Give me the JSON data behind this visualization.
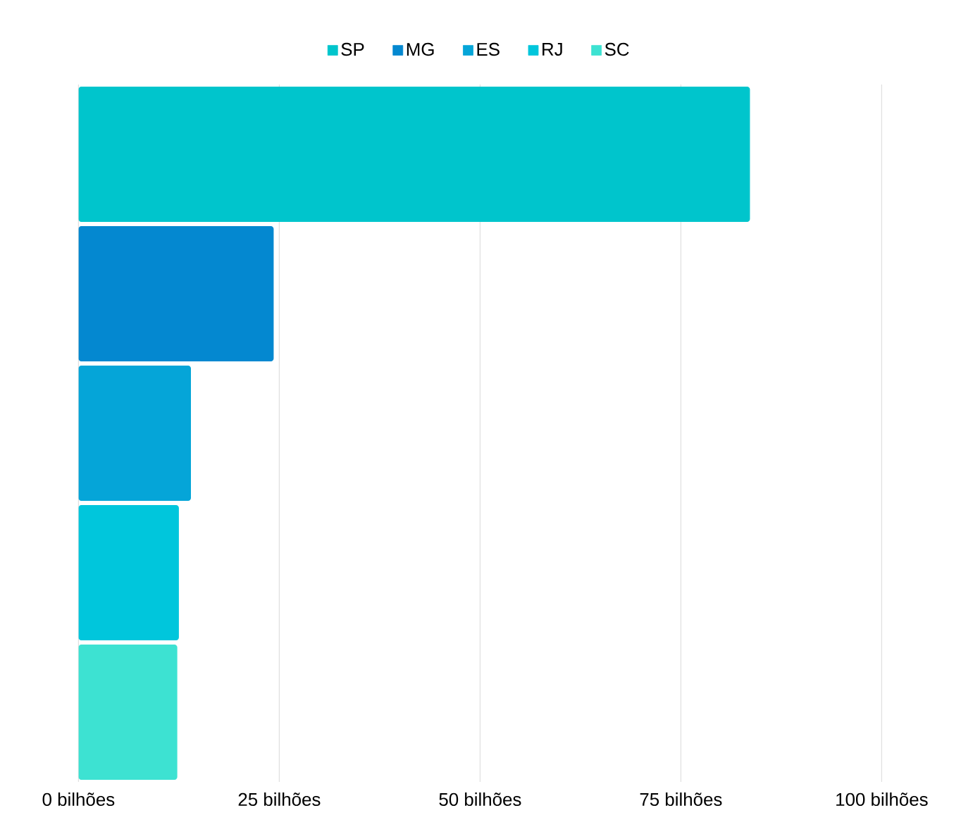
{
  "chart_data": {
    "type": "bar",
    "orientation": "horizontal",
    "stacked": true,
    "categories": [
      null,
      null,
      null,
      null,
      null
    ],
    "series": [
      {
        "name": "SP",
        "color": "#00c5cc",
        "values": [
          83.6,
          null,
          null,
          null,
          null
        ]
      },
      {
        "name": "MG",
        "color": "#0488d0",
        "values": [
          null,
          24.3,
          null,
          null,
          null
        ]
      },
      {
        "name": "ES",
        "color": "#05a5d8",
        "values": [
          null,
          null,
          14.0,
          null,
          null
        ]
      },
      {
        "name": "RJ",
        "color": "#00c6dc",
        "values": [
          null,
          null,
          null,
          12.5,
          null
        ]
      },
      {
        "name": "SC",
        "color": "#3de2d2",
        "values": [
          null,
          null,
          null,
          null,
          12.3
        ]
      }
    ],
    "xlim": [
      0,
      100
    ],
    "xticks": [
      {
        "value": 0,
        "label": "0 bilhões"
      },
      {
        "value": 25,
        "label": "25 bilhões"
      },
      {
        "value": 50,
        "label": "50 bilhões"
      },
      {
        "value": 75,
        "label": "75 bilhões"
      },
      {
        "value": 100,
        "label": "100 bilhões"
      }
    ],
    "tick_labels": "x",
    "grid": "x",
    "legend": "top"
  }
}
